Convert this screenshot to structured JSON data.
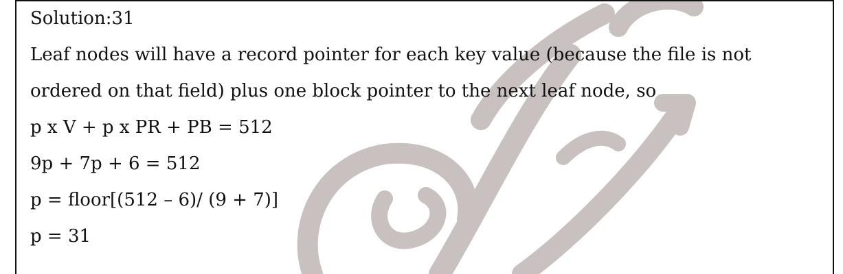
{
  "solution": {
    "heading": "Solution:31",
    "explanation_line1": "Leaf nodes will have a record pointer for each key value (because the file is not",
    "explanation_line2": "ordered on that field) plus one block pointer to the next leaf node, so",
    "equation1": "p x V + p x PR + PB = 512",
    "equation2": "9p + 7p + 6 = 512",
    "equation3": "p = floor[(512 – 6)/ (9 + 7)]",
    "result": "p = 31"
  },
  "watermark": {
    "color": "#bdb4b2"
  }
}
